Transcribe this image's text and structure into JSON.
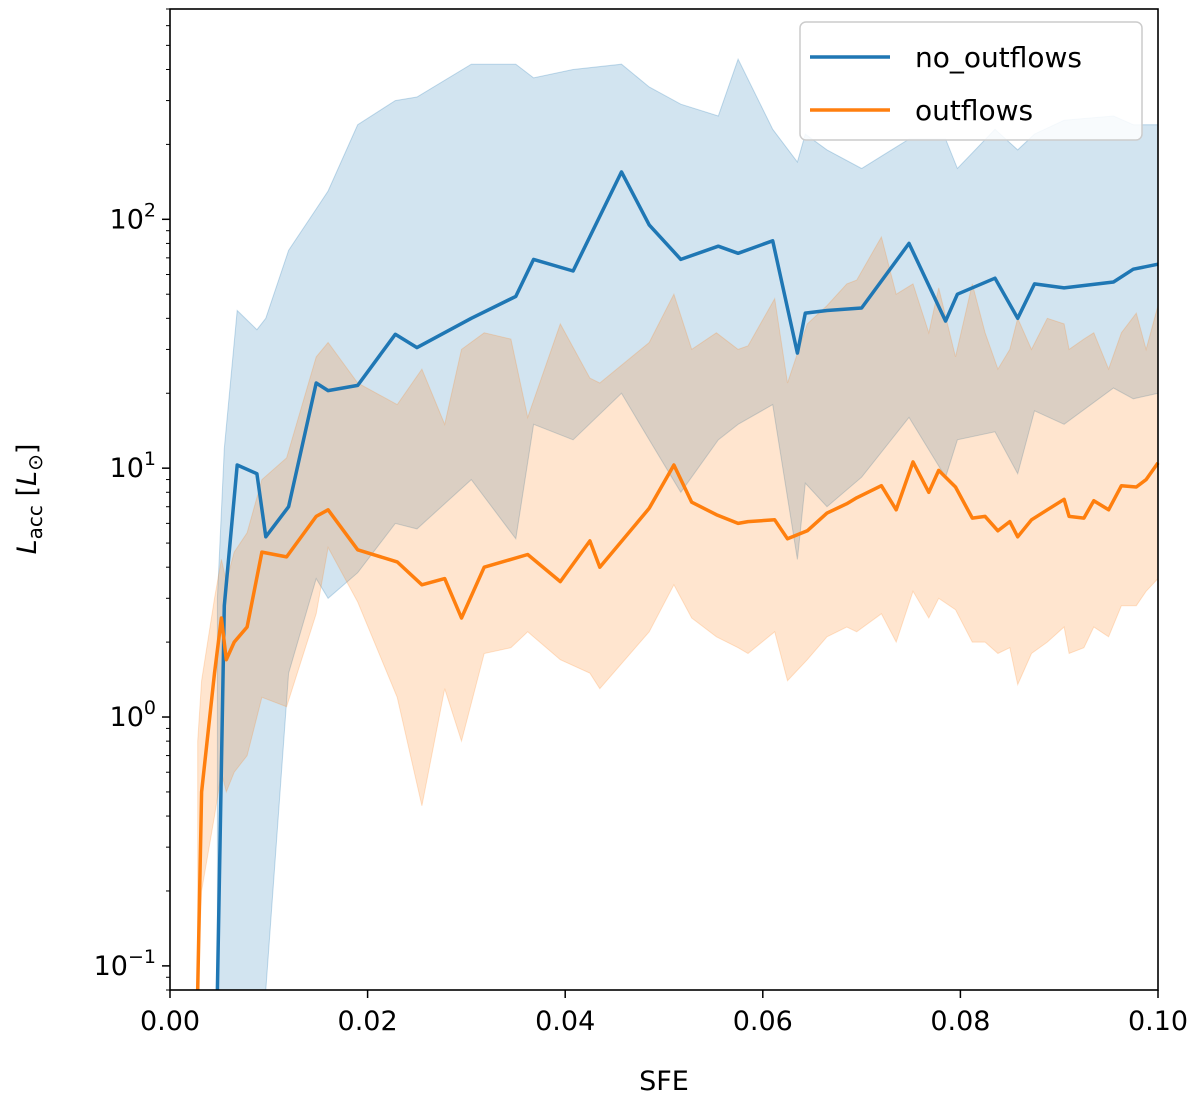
{
  "chart_data": {
    "type": "line",
    "xlabel": "SFE",
    "ylabel_main": "L",
    "ylabel_sub": "acc",
    "ylabel_unit_main": "L",
    "ylabel_unit_sub": "⊙",
    "xlim": [
      0.0,
      0.1
    ],
    "ylim": [
      0.08,
      700
    ],
    "yscale": "log",
    "x_ticks": [
      0.0,
      0.02,
      0.04,
      0.06,
      0.08,
      0.1
    ],
    "x_tick_labels": [
      "0.00",
      "0.02",
      "0.04",
      "0.06",
      "0.08",
      "0.10"
    ],
    "y_ticks": [
      {
        "value": 0.1,
        "base": "10",
        "exp": "−1"
      },
      {
        "value": 1,
        "base": "10",
        "exp": "0"
      },
      {
        "value": 10,
        "base": "10",
        "exp": "1"
      },
      {
        "value": 100,
        "base": "10",
        "exp": "2"
      }
    ],
    "legend_position": "top-right",
    "series": [
      {
        "name": "no_outflows",
        "color": "#1f77b4",
        "x": [
          0.0048,
          0.0055,
          0.0068,
          0.0088,
          0.0097,
          0.012,
          0.0148,
          0.016,
          0.019,
          0.0228,
          0.025,
          0.0305,
          0.035,
          0.0368,
          0.0408,
          0.0457,
          0.0485,
          0.0517,
          0.0555,
          0.0575,
          0.061,
          0.0635,
          0.0643,
          0.0665,
          0.07,
          0.0748,
          0.0785,
          0.0797,
          0.0835,
          0.0858,
          0.0875,
          0.0905,
          0.0955,
          0.0975,
          0.1
        ],
        "y": [
          0.08,
          2.8,
          10.3,
          9.5,
          5.3,
          7.0,
          22.0,
          20.5,
          21.5,
          34.5,
          30.5,
          40.0,
          49.0,
          69.0,
          62.0,
          155.0,
          95.0,
          69.0,
          78.0,
          73.0,
          82.0,
          29.0,
          42.0,
          43.0,
          44.0,
          80.0,
          39.0,
          50.0,
          58.0,
          40.0,
          55.0,
          53.0,
          56.0,
          63.0,
          66.0
        ],
        "lower": [
          0.08,
          0.08,
          0.08,
          0.08,
          0.08,
          1.5,
          3.6,
          3.0,
          3.8,
          6.0,
          5.7,
          9.0,
          5.2,
          15.0,
          13.0,
          20.0,
          13.0,
          8.0,
          13.0,
          15.0,
          18.0,
          4.3,
          8.7,
          7.0,
          9.2,
          16.0,
          9.2,
          13.0,
          14.0,
          9.5,
          17.0,
          15.0,
          21.0,
          19.0,
          20.0
        ],
        "upper": [
          3.0,
          12.0,
          43.0,
          36.0,
          40.0,
          75.0,
          110.0,
          130.0,
          240.0,
          300.0,
          310.0,
          420.0,
          420.0,
          370.0,
          400.0,
          420.0,
          340.0,
          290.0,
          260.0,
          440.0,
          230.0,
          170.0,
          220.0,
          190.0,
          160.0,
          210.0,
          210.0,
          160.0,
          230.0,
          190.0,
          220.0,
          250.0,
          260.0,
          240.0,
          240.0
        ]
      },
      {
        "name": "outflows",
        "color": "#ff7f0e",
        "x": [
          0.0028,
          0.0032,
          0.0045,
          0.0052,
          0.0057,
          0.0065,
          0.0078,
          0.0093,
          0.0118,
          0.0148,
          0.016,
          0.019,
          0.023,
          0.0255,
          0.0278,
          0.0295,
          0.0318,
          0.0345,
          0.0362,
          0.0395,
          0.0425,
          0.0435,
          0.0485,
          0.051,
          0.0528,
          0.0553,
          0.0575,
          0.0585,
          0.0612,
          0.0625,
          0.0645,
          0.0665,
          0.0685,
          0.0695,
          0.072,
          0.0735,
          0.0752,
          0.0768,
          0.0778,
          0.0795,
          0.0812,
          0.0825,
          0.0838,
          0.085,
          0.0858,
          0.0872,
          0.0888,
          0.0905,
          0.091,
          0.0925,
          0.0935,
          0.095,
          0.0963,
          0.0978,
          0.0988,
          0.1
        ],
        "y": [
          0.08,
          0.5,
          1.5,
          2.5,
          1.7,
          2.0,
          2.3,
          4.6,
          4.4,
          6.4,
          6.8,
          4.7,
          4.2,
          3.4,
          3.6,
          2.5,
          4.0,
          4.3,
          4.5,
          3.5,
          5.1,
          4.0,
          6.9,
          10.3,
          7.3,
          6.5,
          6.0,
          6.1,
          6.2,
          5.2,
          5.6,
          6.6,
          7.2,
          7.6,
          8.5,
          6.8,
          10.6,
          8.0,
          9.8,
          8.4,
          6.3,
          6.4,
          5.6,
          6.1,
          5.3,
          6.2,
          6.8,
          7.5,
          6.4,
          6.3,
          7.4,
          6.8,
          8.5,
          8.4,
          9.0,
          10.5
        ]
      },
      {
        "name": "",
        "color": "#ff7f0e",
        "x": [
          0.0028,
          0.0032,
          0.0045,
          0.0052,
          0.0057,
          0.0065,
          0.0078,
          0.0093,
          0.0118,
          0.0148,
          0.016,
          0.019,
          0.023,
          0.0255,
          0.0278,
          0.0295,
          0.0318,
          0.0345,
          0.0362,
          0.0395,
          0.0425,
          0.0435,
          0.0485,
          0.051,
          0.0528,
          0.0553,
          0.0575,
          0.0585,
          0.0612,
          0.0625,
          0.0645,
          0.0665,
          0.0685,
          0.0695,
          0.072,
          0.0735,
          0.0752,
          0.0768,
          0.0778,
          0.0795,
          0.0812,
          0.0825,
          0.0838,
          0.085,
          0.0858,
          0.0872,
          0.0888,
          0.0905,
          0.091,
          0.0925,
          0.0935,
          0.095,
          0.0963,
          0.0978,
          0.0988,
          0.1
        ],
        "y": [
          0.08,
          0.2,
          0.4,
          0.6,
          0.5,
          0.6,
          0.7,
          1.2,
          1.1,
          2.6,
          4.8,
          2.9,
          1.2,
          0.44,
          1.3,
          0.8,
          1.8,
          1.9,
          2.2,
          1.7,
          1.5,
          1.3,
          2.2,
          3.4,
          2.5,
          2.1,
          1.9,
          1.8,
          2.2,
          1.4,
          1.7,
          2.1,
          2.3,
          2.2,
          2.6,
          2.0,
          3.2,
          2.5,
          3.0,
          2.7,
          2.0,
          2.0,
          1.8,
          1.9,
          1.35,
          1.8,
          2.0,
          2.3,
          1.8,
          1.9,
          2.3,
          2.1,
          2.8,
          2.8,
          3.2,
          3.6
        ]
      },
      {
        "name": "",
        "color": "#ff7f0e",
        "x": [
          0.0028,
          0.0032,
          0.0045,
          0.0052,
          0.0057,
          0.0065,
          0.0078,
          0.0093,
          0.0118,
          0.0148,
          0.016,
          0.019,
          0.023,
          0.0255,
          0.0278,
          0.0295,
          0.0318,
          0.0345,
          0.0362,
          0.0395,
          0.0425,
          0.0435,
          0.0485,
          0.051,
          0.0528,
          0.0553,
          0.0575,
          0.0585,
          0.0612,
          0.0625,
          0.0645,
          0.0665,
          0.0685,
          0.0695,
          0.072,
          0.0735,
          0.0752,
          0.0768,
          0.0778,
          0.0795,
          0.0812,
          0.0825,
          0.0838,
          0.085,
          0.0858,
          0.0872,
          0.0888,
          0.0905,
          0.091,
          0.0925,
          0.0935,
          0.095,
          0.0963,
          0.0978,
          0.0988,
          0.1
        ],
        "y": [
          0.8,
          1.4,
          3.0,
          4.3,
          3.5,
          4.6,
          5.5,
          9.0,
          11.0,
          28.0,
          32.0,
          22.0,
          18.0,
          25.0,
          15.0,
          30.0,
          35.0,
          33.0,
          16.0,
          38.0,
          23.0,
          22.0,
          32.0,
          50.0,
          30.0,
          35.0,
          30.0,
          31.0,
          48.0,
          22.0,
          38.0,
          45.0,
          55.0,
          57.0,
          85.0,
          50.0,
          55.0,
          35.0,
          53.0,
          28.0,
          55.0,
          35.0,
          25.0,
          30.0,
          40.0,
          30.0,
          40.0,
          38.0,
          30.0,
          33.0,
          35.0,
          25.0,
          35.0,
          42.0,
          30.0,
          45.0
        ]
      }
    ]
  }
}
